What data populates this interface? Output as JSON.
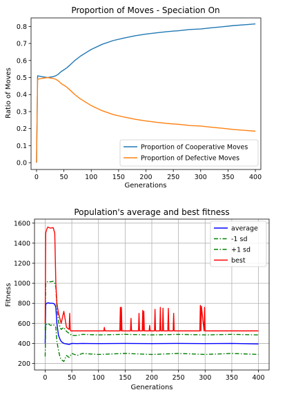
{
  "chart_data": [
    {
      "type": "line",
      "title": "Proportion of Moves - Speciation On",
      "xlabel": "Generations",
      "ylabel": "Ratio of Moves",
      "xlim": [
        -10,
        410
      ],
      "ylim": [
        -0.04,
        0.85
      ],
      "xticks": [
        0,
        50,
        100,
        150,
        200,
        250,
        300,
        350,
        400
      ],
      "yticks": [
        0.0,
        0.1,
        0.2,
        0.3,
        0.4,
        0.5,
        0.6,
        0.7,
        0.8
      ],
      "ytick_labels": [
        "0.0",
        "0.1",
        "0.2",
        "0.3",
        "0.4",
        "0.5",
        "0.6",
        "0.7",
        "0.8"
      ],
      "grid": false,
      "legend_position": "lower-right",
      "series": [
        {
          "name": "Proportion of Cooperative Moves",
          "color": "#1f77b4",
          "style": "solid",
          "x": [
            0,
            2,
            10,
            20,
            30,
            35,
            40,
            45,
            50,
            55,
            60,
            70,
            80,
            100,
            120,
            140,
            160,
            180,
            200,
            220,
            240,
            260,
            280,
            300,
            320,
            340,
            360,
            380,
            400
          ],
          "y": [
            0.0,
            0.51,
            0.505,
            0.5,
            0.505,
            0.51,
            0.52,
            0.535,
            0.545,
            0.556,
            0.57,
            0.6,
            0.625,
            0.665,
            0.695,
            0.717,
            0.732,
            0.745,
            0.755,
            0.763,
            0.77,
            0.775,
            0.782,
            0.785,
            0.792,
            0.798,
            0.805,
            0.81,
            0.815
          ]
        },
        {
          "name": "Proportion of Defective Moves",
          "color": "#ff7f0e",
          "style": "solid",
          "x": [
            0,
            2,
            10,
            20,
            30,
            35,
            40,
            45,
            50,
            55,
            60,
            70,
            80,
            100,
            120,
            140,
            160,
            180,
            200,
            220,
            240,
            260,
            280,
            300,
            320,
            340,
            360,
            380,
            400
          ],
          "y": [
            0.0,
            0.49,
            0.495,
            0.5,
            0.495,
            0.49,
            0.48,
            0.465,
            0.455,
            0.444,
            0.43,
            0.4,
            0.375,
            0.335,
            0.305,
            0.283,
            0.268,
            0.255,
            0.245,
            0.237,
            0.23,
            0.225,
            0.218,
            0.215,
            0.208,
            0.202,
            0.195,
            0.19,
            0.185
          ]
        }
      ]
    },
    {
      "type": "line",
      "title": "Population's average and best fitness",
      "xlabel": "Generations",
      "ylabel": "Fitness",
      "xlim": [
        -20,
        420
      ],
      "ylim": [
        135,
        1640
      ],
      "xticks": [
        0,
        50,
        100,
        150,
        200,
        250,
        300,
        350,
        400
      ],
      "yticks": [
        200,
        400,
        600,
        800,
        1000,
        1200,
        1400,
        1600
      ],
      "grid": true,
      "legend_position": "top-right",
      "series": [
        {
          "name": "average",
          "color": "#0000ff",
          "style": "solid",
          "x": [
            0,
            1,
            3,
            5,
            10,
            15,
            18,
            20,
            22,
            25,
            28,
            30,
            35,
            40,
            45,
            50,
            60,
            70,
            100,
            150,
            200,
            250,
            300,
            350,
            400
          ],
          "y": [
            400,
            790,
            800,
            805,
            800,
            800,
            790,
            760,
            600,
            480,
            440,
            420,
            400,
            395,
            390,
            400,
            398,
            400,
            398,
            400,
            398,
            400,
            398,
            400,
            395
          ]
        },
        {
          "name": "-1 sd",
          "color": "#008000",
          "style": "dashdot",
          "x": [
            0,
            1,
            3,
            5,
            10,
            15,
            18,
            20,
            22,
            25,
            28,
            30,
            35,
            40,
            45,
            50,
            60,
            70,
            100,
            150,
            200,
            250,
            300,
            350,
            400
          ],
          "y": [
            270,
            560,
            590,
            600,
            580,
            590,
            575,
            560,
            420,
            330,
            260,
            240,
            220,
            280,
            260,
            300,
            280,
            300,
            290,
            300,
            290,
            300,
            290,
            300,
            290
          ]
        },
        {
          "name": "+1 sd",
          "color": "#008000",
          "style": "dashdot",
          "x": [
            0,
            1,
            3,
            5,
            10,
            15,
            18,
            20,
            22,
            25,
            28,
            30,
            35,
            40,
            45,
            50,
            60,
            70,
            100,
            150,
            200,
            250,
            300,
            350,
            400
          ],
          "y": [
            530,
            1000,
            1010,
            1020,
            1015,
            1020,
            1000,
            960,
            760,
            620,
            560,
            540,
            560,
            520,
            500,
            480,
            480,
            490,
            485,
            490,
            485,
            490,
            485,
            490,
            485
          ]
        },
        {
          "name": "best",
          "color": "#ff0000",
          "style": "solid",
          "x": [
            0,
            1,
            3,
            5,
            10,
            15,
            18,
            20,
            22,
            25,
            28,
            30,
            35,
            40,
            45,
            46,
            47,
            48,
            50,
            60,
            100,
            110,
            111,
            112,
            140,
            141,
            142,
            143,
            144,
            160,
            161,
            162,
            175,
            176,
            177,
            182,
            183,
            184,
            185,
            186,
            195,
            196,
            197,
            205,
            206,
            207,
            215,
            216,
            217,
            220,
            221,
            222,
            230,
            231,
            232,
            240,
            241,
            242,
            290,
            291,
            292,
            293,
            298,
            299,
            300,
            301,
            350,
            400
          ],
          "y": [
            600,
            1500,
            1540,
            1560,
            1550,
            1555,
            1500,
            1000,
            800,
            700,
            640,
            600,
            720,
            560,
            540,
            700,
            540,
            525,
            525,
            525,
            525,
            525,
            560,
            525,
            525,
            760,
            525,
            760,
            525,
            525,
            650,
            525,
            525,
            700,
            525,
            525,
            730,
            525,
            720,
            525,
            525,
            580,
            525,
            525,
            740,
            525,
            525,
            760,
            525,
            525,
            750,
            525,
            525,
            750,
            525,
            525,
            700,
            525,
            525,
            780,
            525,
            770,
            525,
            760,
            525,
            525,
            525,
            525
          ]
        }
      ]
    }
  ]
}
